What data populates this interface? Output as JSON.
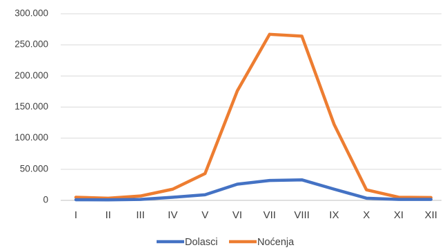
{
  "chart_data": {
    "type": "line",
    "categories": [
      "I",
      "II",
      "III",
      "IV",
      "V",
      "VI",
      "VII",
      "VIII",
      "IX",
      "X",
      "XI",
      "XII"
    ],
    "series": [
      {
        "name": "Dolasci",
        "color": "#4472c4",
        "values": [
          1000,
          800,
          1500,
          5000,
          9000,
          26000,
          32000,
          33000,
          18000,
          3500,
          1500,
          1500
        ]
      },
      {
        "name": "Noćenja",
        "color": "#ed7d31",
        "values": [
          5000,
          3500,
          7000,
          18000,
          43000,
          176000,
          267000,
          264000,
          122000,
          17000,
          5000,
          4500
        ]
      }
    ],
    "ylim": [
      0,
      300000
    ],
    "yticks": [
      0,
      50000,
      100000,
      150000,
      200000,
      250000,
      300000
    ],
    "ytick_labels": [
      "0",
      "50.000",
      "100.000",
      "150.000",
      "200.000",
      "250.000",
      "300.000"
    ],
    "grid": true,
    "legend_position": "bottom",
    "title": "",
    "xlabel": "",
    "ylabel": ""
  }
}
